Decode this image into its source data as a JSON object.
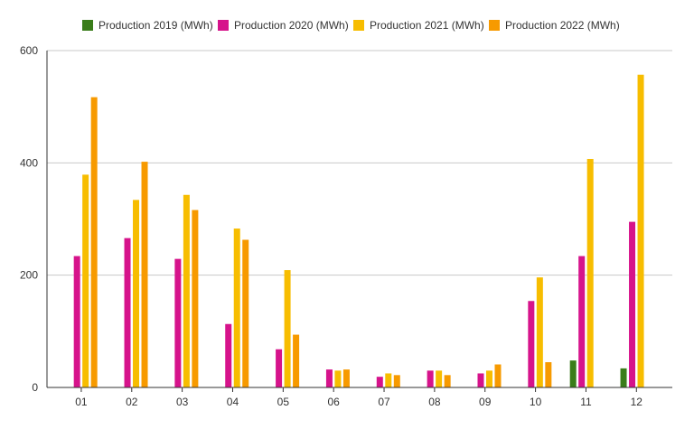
{
  "chart_data": {
    "type": "bar",
    "categories": [
      "01",
      "02",
      "03",
      "04",
      "05",
      "06",
      "07",
      "08",
      "09",
      "10",
      "11",
      "12"
    ],
    "series": [
      {
        "name": "Production 2019 (MWh)",
        "color": "#3a7d1a",
        "values": [
          0,
          0,
          0,
          0,
          0,
          0,
          0,
          0,
          0,
          0,
          48,
          34
        ]
      },
      {
        "name": "Production 2020 (MWh)",
        "color": "#d6138b",
        "values": [
          234,
          266,
          229,
          113,
          68,
          32,
          19,
          30,
          25,
          154,
          234,
          295
        ]
      },
      {
        "name": "Production 2021 (MWh)",
        "color": "#f7bd00",
        "values": [
          379,
          334,
          343,
          283,
          209,
          30,
          25,
          30,
          30,
          196,
          407,
          557
        ]
      },
      {
        "name": "Production 2022 (MWh)",
        "color": "#f79a00",
        "values": [
          517,
          402,
          316,
          263,
          94,
          32,
          22,
          22,
          41,
          45,
          0,
          0
        ]
      }
    ],
    "ylim": [
      0,
      600
    ],
    "yticks": [
      0,
      200,
      400,
      600
    ],
    "grid": true,
    "legend_position": "top"
  }
}
